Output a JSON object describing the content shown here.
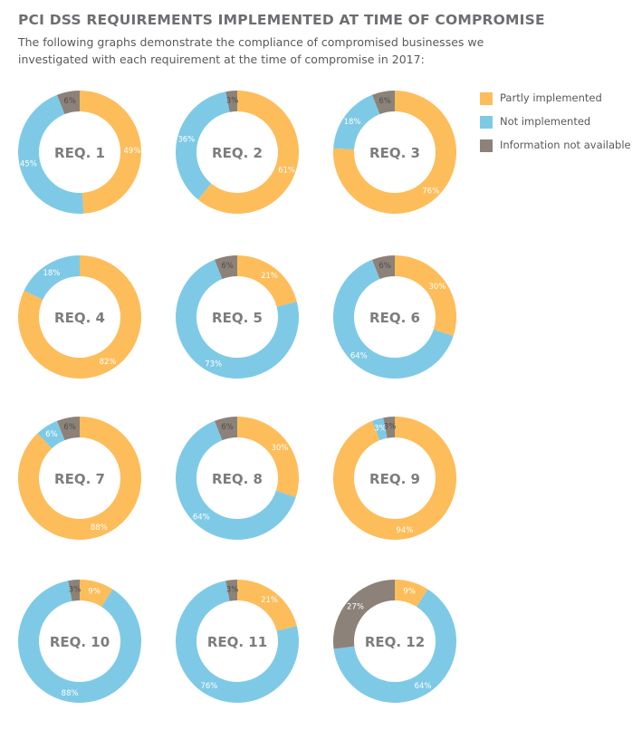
{
  "header": {
    "title": "PCI DSS REQUIREMENTS IMPLEMENTED AT TIME OF COMPROMISE",
    "subtitle": "The following graphs demonstrate the compliance of compromised businesses we investigated with each requirement at the time of compromise in 2017:"
  },
  "colors": {
    "partly": "#fdbd5a",
    "not": "#7ecae6",
    "na": "#8c8279",
    "center_text": "#7d7d7d"
  },
  "legend": [
    {
      "key": "partly",
      "label": "Partly implemented"
    },
    {
      "key": "not",
      "label": "Not implemented"
    },
    {
      "key": "na",
      "label": "Information not available"
    }
  ],
  "chart_data": [
    {
      "type": "pie",
      "title": "REQ. 1",
      "categories": [
        "Partly implemented",
        "Not implemented",
        "Information not available"
      ],
      "values": [
        49,
        45,
        6
      ],
      "labels": [
        "49%",
        "45%",
        "6%"
      ]
    },
    {
      "type": "pie",
      "title": "REQ. 2",
      "categories": [
        "Partly implemented",
        "Not implemented",
        "Information not available"
      ],
      "values": [
        61,
        36,
        3
      ],
      "labels": [
        "61%",
        "36%",
        "3%"
      ]
    },
    {
      "type": "pie",
      "title": "REQ. 3",
      "categories": [
        "Partly implemented",
        "Not implemented",
        "Information not available"
      ],
      "values": [
        76,
        18,
        6
      ],
      "labels": [
        "76%",
        "18%",
        "6%"
      ]
    },
    {
      "type": "pie",
      "title": "REQ. 4",
      "categories": [
        "Partly implemented",
        "Not implemented"
      ],
      "values": [
        82,
        18
      ],
      "labels": [
        "82%",
        "18%"
      ]
    },
    {
      "type": "pie",
      "title": "REQ. 5",
      "categories": [
        "Partly implemented",
        "Not implemented",
        "Information not available"
      ],
      "values": [
        21,
        73,
        6
      ],
      "labels": [
        "21%",
        "73%",
        "6%"
      ]
    },
    {
      "type": "pie",
      "title": "REQ. 6",
      "categories": [
        "Partly implemented",
        "Not implemented",
        "Information not available"
      ],
      "values": [
        30,
        64,
        6
      ],
      "labels": [
        "30%",
        "64%",
        "6%"
      ]
    },
    {
      "type": "pie",
      "title": "REQ. 7",
      "categories": [
        "Partly implemented",
        "Not implemented",
        "Information not available"
      ],
      "values": [
        88,
        6,
        6
      ],
      "labels": [
        "88%",
        "6%",
        "6%"
      ]
    },
    {
      "type": "pie",
      "title": "REQ. 8",
      "categories": [
        "Partly implemented",
        "Not implemented",
        "Information not available"
      ],
      "values": [
        30,
        64,
        6
      ],
      "labels": [
        "30%",
        "64%",
        "6%"
      ]
    },
    {
      "type": "pie",
      "title": "REQ. 9",
      "categories": [
        "Partly implemented",
        "Not implemented",
        "Information not available"
      ],
      "values": [
        94,
        3,
        3
      ],
      "labels": [
        "94%",
        "3%",
        "3%"
      ]
    },
    {
      "type": "pie",
      "title": "REQ. 10",
      "categories": [
        "Partly implemented",
        "Not implemented",
        "Information not available"
      ],
      "values": [
        9,
        88,
        3
      ],
      "labels": [
        "9%",
        "88%",
        "3%"
      ]
    },
    {
      "type": "pie",
      "title": "REQ. 11",
      "categories": [
        "Partly implemented",
        "Not implemented",
        "Information not available"
      ],
      "values": [
        21,
        76,
        3
      ],
      "labels": [
        "21%",
        "76%",
        "3%"
      ]
    },
    {
      "type": "pie",
      "title": "REQ. 12",
      "categories": [
        "Partly implemented",
        "Not implemented",
        "Information not available"
      ],
      "values": [
        9,
        64,
        27
      ],
      "labels": [
        "9%",
        "64%",
        "27%"
      ]
    }
  ]
}
